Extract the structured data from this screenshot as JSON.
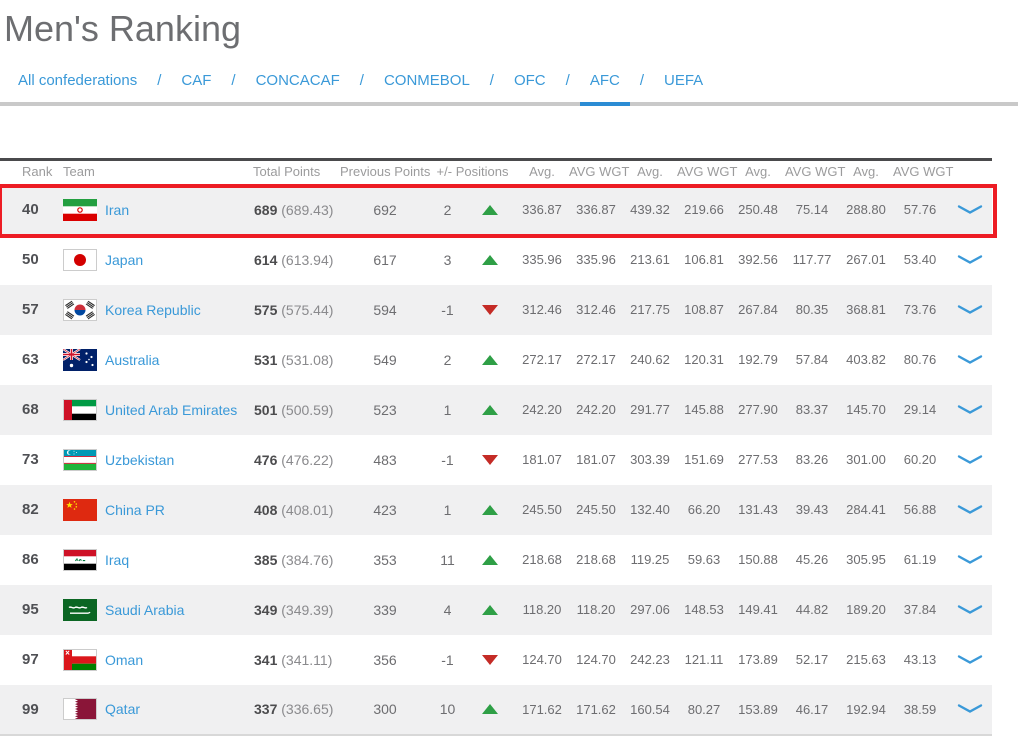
{
  "page": {
    "title": "Men's Ranking"
  },
  "nav": {
    "separator": "/",
    "tabs": [
      {
        "label": "All confederations",
        "active": false
      },
      {
        "label": "CAF",
        "active": false
      },
      {
        "label": "CONCACAF",
        "active": false
      },
      {
        "label": "CONMEBOL",
        "active": false
      },
      {
        "label": "OFC",
        "active": false
      },
      {
        "label": "AFC",
        "active": true
      },
      {
        "label": "UEFA",
        "active": false
      }
    ]
  },
  "table": {
    "headers": {
      "rank": "Rank",
      "team": "Team",
      "total_points": "Total Points",
      "previous_points": "Previous Points",
      "positions": "+/- Positions",
      "stat_headers": [
        "Avg.",
        "AVG WGT",
        "Avg.",
        "AVG WGT",
        "Avg.",
        "AVG WGT",
        "Avg.",
        "AVG WGT"
      ]
    },
    "expand_icon": "chevron-down-icon",
    "rows": [
      {
        "rank": "40",
        "team": "Iran",
        "flag_icon": "iran-flag",
        "total_points": "689",
        "total_points_exact": "(689.43)",
        "previous_points": "692",
        "position_change": "2",
        "trend": "up",
        "highlighted": true,
        "stats": [
          "336.87",
          "336.87",
          "439.32",
          "219.66",
          "250.48",
          "75.14",
          "288.80",
          "57.76"
        ]
      },
      {
        "rank": "50",
        "team": "Japan",
        "flag_icon": "japan-flag",
        "total_points": "614",
        "total_points_exact": "(613.94)",
        "previous_points": "617",
        "position_change": "3",
        "trend": "up",
        "highlighted": false,
        "stats": [
          "335.96",
          "335.96",
          "213.61",
          "106.81",
          "392.56",
          "117.77",
          "267.01",
          "53.40"
        ]
      },
      {
        "rank": "57",
        "team": "Korea Republic",
        "flag_icon": "korea-republic-flag",
        "total_points": "575",
        "total_points_exact": "(575.44)",
        "previous_points": "594",
        "position_change": "-1",
        "trend": "down",
        "highlighted": false,
        "stats": [
          "312.46",
          "312.46",
          "217.75",
          "108.87",
          "267.84",
          "80.35",
          "368.81",
          "73.76"
        ]
      },
      {
        "rank": "63",
        "team": "Australia",
        "flag_icon": "australia-flag",
        "total_points": "531",
        "total_points_exact": "(531.08)",
        "previous_points": "549",
        "position_change": "2",
        "trend": "up",
        "highlighted": false,
        "stats": [
          "272.17",
          "272.17",
          "240.62",
          "120.31",
          "192.79",
          "57.84",
          "403.82",
          "80.76"
        ]
      },
      {
        "rank": "68",
        "team": "United Arab Emirates",
        "flag_icon": "united-arab-emirates-flag",
        "total_points": "501",
        "total_points_exact": "(500.59)",
        "previous_points": "523",
        "position_change": "1",
        "trend": "up",
        "highlighted": false,
        "stats": [
          "242.20",
          "242.20",
          "291.77",
          "145.88",
          "277.90",
          "83.37",
          "145.70",
          "29.14"
        ]
      },
      {
        "rank": "73",
        "team": "Uzbekistan",
        "flag_icon": "uzbekistan-flag",
        "total_points": "476",
        "total_points_exact": "(476.22)",
        "previous_points": "483",
        "position_change": "-1",
        "trend": "down",
        "highlighted": false,
        "stats": [
          "181.07",
          "181.07",
          "303.39",
          "151.69",
          "277.53",
          "83.26",
          "301.00",
          "60.20"
        ]
      },
      {
        "rank": "82",
        "team": "China PR",
        "flag_icon": "china-pr-flag",
        "total_points": "408",
        "total_points_exact": "(408.01)",
        "previous_points": "423",
        "position_change": "1",
        "trend": "up",
        "highlighted": false,
        "stats": [
          "245.50",
          "245.50",
          "132.40",
          "66.20",
          "131.43",
          "39.43",
          "284.41",
          "56.88"
        ]
      },
      {
        "rank": "86",
        "team": "Iraq",
        "flag_icon": "iraq-flag",
        "total_points": "385",
        "total_points_exact": "(384.76)",
        "previous_points": "353",
        "position_change": "11",
        "trend": "up",
        "highlighted": false,
        "stats": [
          "218.68",
          "218.68",
          "119.25",
          "59.63",
          "150.88",
          "45.26",
          "305.95",
          "61.19"
        ]
      },
      {
        "rank": "95",
        "team": "Saudi Arabia",
        "flag_icon": "saudi-arabia-flag",
        "total_points": "349",
        "total_points_exact": "(349.39)",
        "previous_points": "339",
        "position_change": "4",
        "trend": "up",
        "highlighted": false,
        "stats": [
          "118.20",
          "118.20",
          "297.06",
          "148.53",
          "149.41",
          "44.82",
          "189.20",
          "37.84"
        ]
      },
      {
        "rank": "97",
        "team": "Oman",
        "flag_icon": "oman-flag",
        "total_points": "341",
        "total_points_exact": "(341.11)",
        "previous_points": "356",
        "position_change": "-1",
        "trend": "down",
        "highlighted": false,
        "stats": [
          "124.70",
          "124.70",
          "242.23",
          "121.11",
          "173.89",
          "52.17",
          "215.63",
          "43.13"
        ]
      },
      {
        "rank": "99",
        "team": "Qatar",
        "flag_icon": "qatar-flag",
        "total_points": "337",
        "total_points_exact": "(336.65)",
        "previous_points": "300",
        "position_change": "10",
        "trend": "up",
        "highlighted": false,
        "stats": [
          "171.62",
          "171.62",
          "160.54",
          "80.27",
          "153.89",
          "46.17",
          "192.94",
          "38.59"
        ]
      }
    ]
  },
  "colors": {
    "link_blue": "#3A99D8",
    "active_tab_underline": "#2B8CD4",
    "trend_up_green": "#2E9F46",
    "trend_down_red": "#C42B26",
    "highlight_border_red": "#ED1C24",
    "row_alt_background": "#F0F0F1"
  }
}
